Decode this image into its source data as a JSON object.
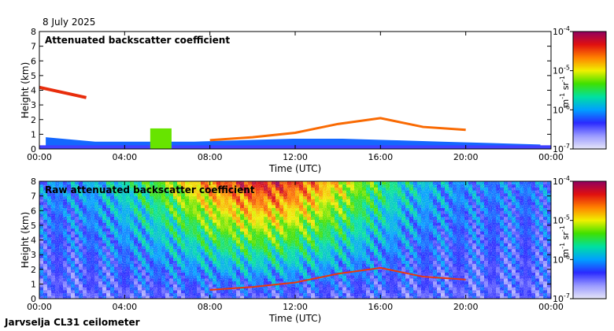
{
  "date": "8 July 2025",
  "instrument": "Jarvselja CL31 ceilometer",
  "colors": {
    "colormap": [
      "#e6e6f8",
      "#9a9aff",
      "#2a2aff",
      "#00a0ff",
      "#00e0a0",
      "#40e000",
      "#f0f000",
      "#ff8000",
      "#e01010",
      "#900060"
    ]
  },
  "chart_data": [
    {
      "type": "heatmap",
      "title": "Attenuated backscatter coefficient",
      "xlabel": "Time (UTC)",
      "ylabel": "Height (km)",
      "xlim": [
        0,
        24
      ],
      "ylim": [
        0,
        8
      ],
      "xticks": [
        0,
        4,
        8,
        12,
        16,
        20,
        24
      ],
      "xtick_labels": [
        "00:00",
        "04:00",
        "08:00",
        "12:00",
        "16:00",
        "20:00",
        "00:00"
      ],
      "yticks": [
        0,
        1,
        2,
        3,
        4,
        5,
        6,
        7,
        8
      ],
      "ytick_labels": [
        "0",
        "1",
        "2",
        "3",
        "4",
        "5",
        "6",
        "7",
        "8"
      ],
      "colorbar": {
        "label_parts": [
          "m",
          "-1",
          " sr",
          "-1"
        ],
        "log_range": [
          -7,
          -4
        ],
        "tick_exponents": [
          -4,
          -5,
          -6,
          -7
        ],
        "tick_labels": [
          {
            "base": "10",
            "exp": "-4"
          },
          {
            "base": "10",
            "exp": "-5"
          },
          {
            "base": "10",
            "exp": "-6"
          },
          {
            "base": "10",
            "exp": "-7"
          }
        ]
      },
      "layers": [
        {
          "name": "boundary layer",
          "time_start": 0.3,
          "time_end": 23.5,
          "top_km_estimate": [
            0.8,
            0.5,
            0.5,
            0.5,
            0.6,
            0.7,
            0.7,
            0.6,
            0.5,
            0.4,
            0.3
          ]
        },
        {
          "name": "early cloud",
          "time_start": 0.0,
          "time_end": 2.2,
          "height_km": 3.9
        },
        {
          "name": "elevated layer",
          "time_start": 8.0,
          "time_end": 20.0,
          "height_km_estimate": [
            0.6,
            0.8,
            1.1,
            1.7,
            2.1,
            1.5,
            1.3
          ]
        },
        {
          "name": "fog/precipitation column",
          "time_start": 5.2,
          "time_end": 6.2,
          "top_km": 1.4
        }
      ]
    },
    {
      "type": "heatmap",
      "title": "Raw attenuated backscatter coefficient",
      "xlabel": "Time (UTC)",
      "ylabel": "Height (km)",
      "xlim": [
        0,
        24
      ],
      "ylim": [
        0,
        8
      ],
      "xticks": [
        0,
        4,
        8,
        12,
        16,
        20,
        24
      ],
      "xtick_labels": [
        "00:00",
        "04:00",
        "08:00",
        "12:00",
        "16:00",
        "20:00",
        "00:00"
      ],
      "yticks": [
        0,
        1,
        2,
        3,
        4,
        5,
        6,
        7,
        8
      ],
      "ytick_labels": [
        "0",
        "1",
        "2",
        "3",
        "4",
        "5",
        "6",
        "7",
        "8"
      ],
      "colorbar": {
        "label_parts": [
          "m",
          "-1",
          " sr",
          "-1"
        ],
        "log_range": [
          -7,
          -4
        ],
        "tick_exponents": [
          -4,
          -5,
          -6,
          -7
        ],
        "tick_labels": [
          {
            "base": "10",
            "exp": "-4"
          },
          {
            "base": "10",
            "exp": "-5"
          },
          {
            "base": "10",
            "exp": "-6"
          },
          {
            "base": "10",
            "exp": "-7"
          }
        ]
      },
      "noise_peak_time_utc": 10.5
    }
  ]
}
